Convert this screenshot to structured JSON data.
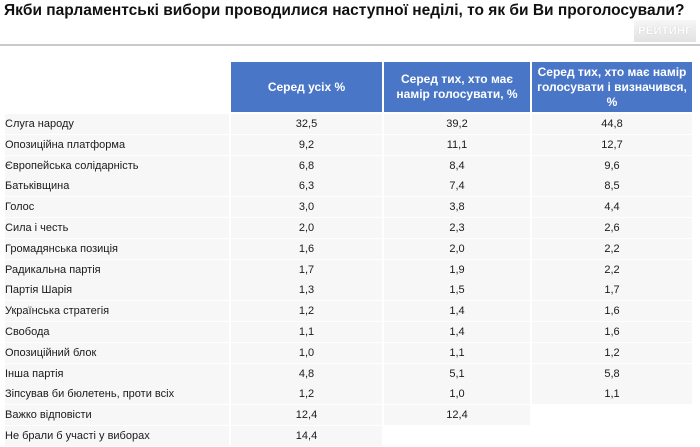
{
  "page": {
    "title": "Якби парламентські вибори проводилися наступної неділі, то як би Ви проголосували?",
    "logo": "РЕЙТИНГ"
  },
  "chart_data": {
    "type": "table",
    "title": "Якби парламентські вибори проводилися наступної неділі, то як би Ви проголосували?",
    "columns": [
      "Серед усіх %",
      "Серед тих, хто має намір голосувати, %",
      "Серед тих, хто має намір голосувати і визначився, %"
    ],
    "rows": [
      {
        "label": "Слуга народу",
        "values": [
          "32,5",
          "39,2",
          "44,8"
        ]
      },
      {
        "label": "Опозиційна платформа",
        "values": [
          "9,2",
          "11,1",
          "12,7"
        ]
      },
      {
        "label": "Європейська солідарність",
        "values": [
          "6,8",
          "8,4",
          "9,6"
        ]
      },
      {
        "label": "Батьківщина",
        "values": [
          "6,3",
          "7,4",
          "8,5"
        ]
      },
      {
        "label": "Голос",
        "values": [
          "3,0",
          "3,8",
          "4,4"
        ]
      },
      {
        "label": "Сила і честь",
        "values": [
          "2,0",
          "2,3",
          "2,6"
        ]
      },
      {
        "label": "Громадянська позиція",
        "values": [
          "1,6",
          "2,0",
          "2,2"
        ]
      },
      {
        "label": "Радикальна партія",
        "values": [
          "1,7",
          "1,9",
          "2,2"
        ]
      },
      {
        "label": "Партія Шарія",
        "values": [
          "1,3",
          "1,5",
          "1,7"
        ]
      },
      {
        "label": "Українська стратегія",
        "values": [
          "1,2",
          "1,4",
          "1,6"
        ]
      },
      {
        "label": "Свобода",
        "values": [
          "1,1",
          "1,4",
          "1,6"
        ]
      },
      {
        "label": "Опозиційний блок",
        "values": [
          "1,0",
          "1,1",
          "1,2"
        ]
      },
      {
        "label": "Інша партія",
        "values": [
          "4,8",
          "5,1",
          "5,8"
        ]
      },
      {
        "label": "Зіпсував би бюлетень, проти всіх",
        "values": [
          "1,2",
          "1,0",
          "1,1"
        ]
      },
      {
        "label": "Важко відповісти",
        "values": [
          "12,4",
          "12,4",
          ""
        ]
      },
      {
        "label": "Не брали б участі у виборах",
        "values": [
          "14,4",
          "",
          ""
        ]
      }
    ]
  }
}
